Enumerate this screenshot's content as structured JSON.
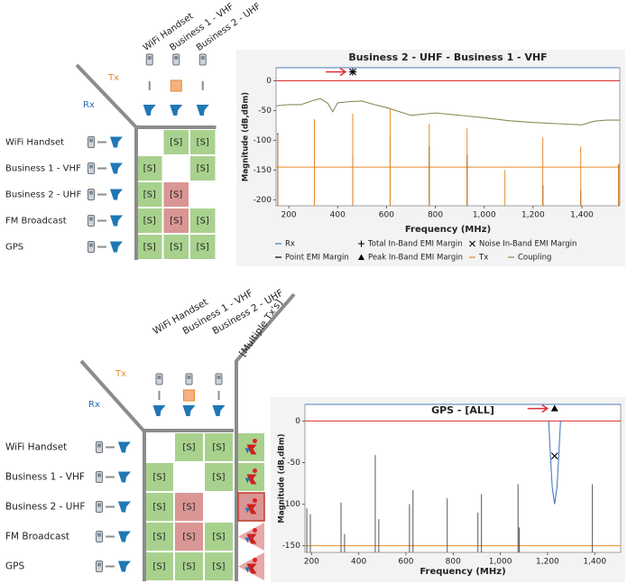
{
  "matrices": [
    {
      "tx_title": "Tx",
      "rx_title": "Rx",
      "tx": [
        "WiFi Handset",
        "Business 1 - VHF",
        "Business 2 - UHF"
      ],
      "rx": [
        "WiFi Handset",
        "Business 1 - VHF",
        "Business 2 - UHF",
        "FM Broadcast",
        "GPS"
      ],
      "cells": [
        [
          null,
          {
            "text": "[S]",
            "color": "#a9d18e"
          },
          {
            "text": "[S]",
            "color": "#a9d18e"
          }
        ],
        [
          {
            "text": "[S]",
            "color": "#a9d18e"
          },
          null,
          {
            "text": "[S]",
            "color": "#a9d18e"
          }
        ],
        [
          {
            "text": "[S]",
            "color": "#a9d18e"
          },
          {
            "text": "[S]",
            "color": "#d99694"
          },
          null
        ],
        [
          {
            "text": "[S]",
            "color": "#a9d18e"
          },
          {
            "text": "[S]",
            "color": "#d99694"
          },
          {
            "text": "[S]",
            "color": "#a9d18e"
          }
        ],
        [
          {
            "text": "[S]",
            "color": "#a9d18e"
          },
          {
            "text": "[S]",
            "color": "#a9d18e"
          },
          {
            "text": "[S]",
            "color": "#a9d18e"
          }
        ]
      ]
    },
    {
      "tx_title": "Tx",
      "rx_title": "Rx",
      "tx": [
        "WiFi Handset",
        "Business 1 - VHF",
        "Business 2 - UHF"
      ],
      "rx": [
        "WiFi Handset",
        "Business 1 - VHF",
        "Business 2 - UHF",
        "FM Broadcast",
        "GPS"
      ],
      "cells": [
        [
          null,
          {
            "text": "[S]",
            "color": "#a9d18e"
          },
          {
            "text": "[S]",
            "color": "#a9d18e"
          }
        ],
        [
          {
            "text": "[S]",
            "color": "#a9d18e"
          },
          null,
          {
            "text": "[S]",
            "color": "#a9d18e"
          }
        ],
        [
          {
            "text": "[S]",
            "color": "#a9d18e"
          },
          {
            "text": "[S]",
            "color": "#d99694"
          },
          null
        ],
        [
          {
            "text": "[S]",
            "color": "#a9d18e"
          },
          {
            "text": "[S]",
            "color": "#d99694"
          },
          {
            "text": "[S]",
            "color": "#a9d18e"
          }
        ],
        [
          {
            "text": "[S]",
            "color": "#a9d18e"
          },
          {
            "text": "[S]",
            "color": "#a9d18e"
          },
          {
            "text": "[S]",
            "color": "#a9d18e"
          }
        ]
      ],
      "multi_tx": {
        "label": "[Multiple Tx's]",
        "cells": [
          {
            "color": "#a9d18e",
            "shape": "square"
          },
          {
            "color": "#a9d18e",
            "shape": "square"
          },
          {
            "color": "#d99694",
            "shape": "outlined"
          },
          {
            "color": "#e6a8a8",
            "shape": "triangle"
          },
          {
            "color": "#e6a8a8",
            "shape": "triangle"
          }
        ]
      }
    }
  ],
  "chart_data": [
    {
      "type": "stem",
      "title": "Business 2 - UHF - Business 1 - VHF",
      "x_label": "Frequency (MHz)",
      "y_label": "Magnitude (dB,dBm)",
      "legend": true,
      "xlim": [
        148,
        1555
      ],
      "ylim": [
        -210,
        22
      ],
      "xticks": [
        200,
        400,
        600,
        800,
        {
          "value": 1000,
          "label": "1,000"
        },
        {
          "value": 1200,
          "label": "1,200"
        },
        {
          "value": 1400,
          "label": "1,400"
        }
      ],
      "yticks": [
        0,
        -50,
        -100,
        -150,
        -200
      ],
      "reference_lines": [
        {
          "value": 0,
          "color": "#d9302c"
        },
        {
          "value": -145,
          "color": "#e8892b"
        }
      ],
      "series": [
        {
          "name": "Rx",
          "color": "#4a7ebb",
          "style": "stem",
          "x": [
            462
          ],
          "values": [
            -130
          ]
        },
        {
          "name": "Total In-Band EMI Margin",
          "color": "#000000",
          "style": "plus",
          "x": [
            462
          ],
          "values": [
            15
          ]
        },
        {
          "name": "Noise In-Band EMI Margin",
          "color": "#000000",
          "style": "cross",
          "x": [
            462
          ],
          "values": [
            15
          ]
        },
        {
          "name": "Point EMI Margin",
          "color": "#000000",
          "style": "stem",
          "x": [
            155,
            305,
            462,
            615,
            775,
            930,
            1240,
            1395,
            1550
          ],
          "values": [
            -88,
            -65,
            -128,
            -95,
            -110,
            -125,
            -175,
            -185,
            -140
          ]
        },
        {
          "name": "Peak In-Band EMI Margin",
          "color": "#000000",
          "style": "triangle",
          "x": [],
          "values": []
        },
        {
          "name": "Tx",
          "color": "#e8892b",
          "style": "stem",
          "x": [
            155,
            305,
            462,
            615,
            775,
            930,
            1085,
            1240,
            1395,
            1550
          ],
          "values": [
            -90,
            -65,
            -55,
            -48,
            -72,
            -80,
            -150,
            -95,
            -110,
            -140
          ]
        },
        {
          "name": "Coupling",
          "color": "#8c8a5a",
          "style": "line",
          "x": [
            150,
            200,
            250,
            300,
            330,
            360,
            380,
            400,
            450,
            500,
            550,
            600,
            700,
            800,
            900,
            1000,
            1100,
            1200,
            1300,
            1400,
            1450,
            1500,
            1555
          ],
          "values": [
            -42,
            -40,
            -40,
            -33,
            -30,
            -38,
            -52,
            -37,
            -35,
            -34,
            -40,
            -45,
            -58,
            -54,
            -58,
            -62,
            -67,
            -70,
            -72,
            -74,
            -68,
            -66,
            -66
          ]
        }
      ]
    },
    {
      "type": "stem",
      "title": "GPS - [ALL]",
      "x_label": "Frequency (MHz)",
      "y_label": "Magnitude (dB,dBm)",
      "legend": false,
      "xlim": [
        172,
        1510
      ],
      "ylim": [
        -158,
        20
      ],
      "xticks": [
        200,
        400,
        600,
        800,
        {
          "value": 1000,
          "label": "1,000"
        },
        {
          "value": 1200,
          "label": "1,200"
        },
        {
          "value": 1400,
          "label": "1,400"
        }
      ],
      "yticks": [
        0,
        -50,
        -100,
        -150
      ],
      "reference_lines": [
        {
          "value": 0,
          "color": "#d9302c"
        },
        {
          "value": -150,
          "color": "#e8892b"
        }
      ],
      "series": [
        {
          "color": "#555555",
          "style": "stem",
          "x": [
            180,
            195,
            325,
            340,
            470,
            485,
            615,
            630,
            775,
            905,
            920,
            1075,
            1080,
            1390
          ],
          "values": [
            -105,
            -112,
            -98,
            -136,
            -41,
            -118,
            -100,
            -83,
            -93,
            -110,
            -88,
            -76,
            -128,
            -76
          ]
        },
        {
          "color": "#4a7ebb",
          "style": "line",
          "x": [
            1205,
            1212,
            1220,
            1230,
            1240,
            1248,
            1255
          ],
          "values": [
            0,
            -40,
            -80,
            -100,
            -80,
            -40,
            0
          ]
        },
        {
          "color": "#000000",
          "style": "triangle",
          "x": [
            1230
          ],
          "values": [
            15
          ]
        },
        {
          "color": "#000000",
          "style": "cross",
          "x": [
            1230
          ],
          "values": [
            -42
          ]
        }
      ]
    }
  ]
}
